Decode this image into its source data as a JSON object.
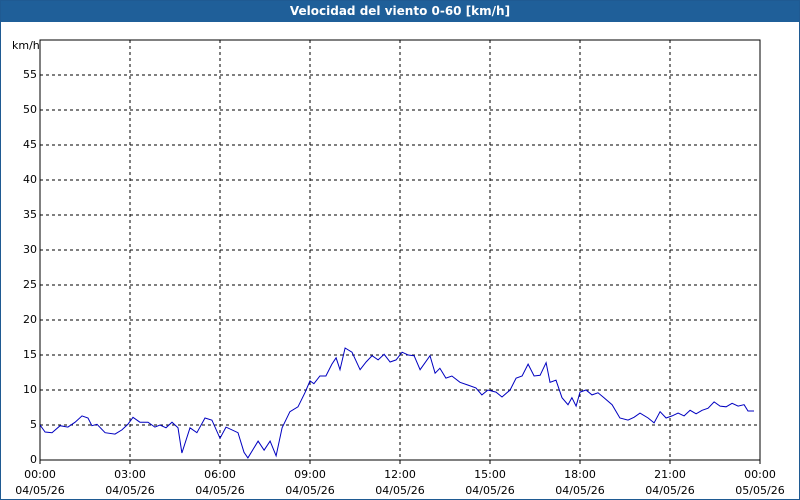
{
  "chart_data": {
    "type": "line",
    "title": "Velocidad del viento 0-60 [km/h]",
    "y_label": "km/h",
    "xlim": [
      0,
      24
    ],
    "xticks": [
      {
        "value": 0,
        "label": "00:00"
      },
      {
        "value": 3,
        "label": "03:00"
      },
      {
        "value": 6,
        "label": "06:00"
      },
      {
        "value": 9,
        "label": "09:00"
      },
      {
        "value": 12,
        "label": "12:00"
      },
      {
        "value": 15,
        "label": "15:00"
      },
      {
        "value": 18,
        "label": "18:00"
      },
      {
        "value": 21,
        "label": "21:00"
      },
      {
        "value": 24,
        "label": "00:00"
      }
    ],
    "xtick_dates": [
      "04/05/26",
      "04/05/26",
      "04/05/26",
      "04/05/26",
      "04/05/26",
      "04/05/26",
      "04/05/26",
      "04/05/26",
      "05/05/26"
    ],
    "ylim": [
      0,
      60
    ],
    "yticks": [
      0,
      5,
      10,
      15,
      20,
      25,
      30,
      35,
      40,
      45,
      50,
      55
    ],
    "grid": true,
    "series": [
      {
        "name": "Velocidad del viento",
        "color": "#0000c0",
        "x": [
          0,
          0.17,
          0.4,
          0.67,
          0.93,
          1.17,
          1.4,
          1.6,
          1.73,
          1.9,
          2.17,
          2.5,
          2.73,
          2.93,
          3.1,
          3.33,
          3.6,
          3.83,
          4,
          4.2,
          4.4,
          4.6,
          4.73,
          5,
          5.23,
          5.5,
          5.73,
          6,
          6.2,
          6.6,
          6.8,
          6.93,
          7.27,
          7.47,
          7.67,
          7.87,
          8.07,
          8.33,
          8.6,
          8.83,
          9,
          9.13,
          9.33,
          9.53,
          9.73,
          9.87,
          10,
          10.17,
          10.4,
          10.67,
          10.87,
          11.07,
          11.27,
          11.47,
          11.67,
          11.87,
          12.07,
          12.27,
          12.47,
          12.67,
          13,
          13.17,
          13.33,
          13.53,
          13.73,
          14,
          14.27,
          14.53,
          14.73,
          14.93,
          15.2,
          15.4,
          15.67,
          15.87,
          16.07,
          16.27,
          16.47,
          16.67,
          16.87,
          17,
          17.2,
          17.4,
          17.6,
          17.73,
          17.87,
          18,
          18.2,
          18.4,
          18.6,
          18.8,
          19.07,
          19.33,
          19.6,
          19.8,
          20,
          20.27,
          20.47,
          20.67,
          20.87,
          21.07,
          21.27,
          21.47,
          21.67,
          21.87,
          22.07,
          22.27,
          22.47,
          22.67,
          22.87,
          23.07,
          23.27,
          23.47,
          23.6,
          23.8
        ],
        "values": [
          5,
          4,
          3.9,
          4.9,
          4.7,
          5.4,
          6.3,
          6,
          4.9,
          5.1,
          3.9,
          3.7,
          4.3,
          5.1,
          6.1,
          5.4,
          5.4,
          4.7,
          5,
          4.6,
          5.4,
          4.6,
          1,
          4.6,
          3.9,
          6,
          5.7,
          3.1,
          4.7,
          3.9,
          1.1,
          0.3,
          2.7,
          1.4,
          2.7,
          0.6,
          4.6,
          6.9,
          7.6,
          9.6,
          11.3,
          10.9,
          12,
          12,
          13.7,
          14.6,
          12.9,
          16,
          15.4,
          12.9,
          14,
          14.9,
          14.3,
          15.1,
          14,
          14.3,
          15.4,
          15,
          14.9,
          12.9,
          14.9,
          12.4,
          13.1,
          11.7,
          12,
          11.1,
          10.7,
          10.3,
          9.3,
          10,
          9.7,
          9,
          10,
          11.7,
          12,
          13.7,
          12,
          12.1,
          13.9,
          11.1,
          11.4,
          8.9,
          7.9,
          8.9,
          7.7,
          9.7,
          10,
          9.3,
          9.6,
          8.9,
          7.9,
          6,
          5.7,
          6.1,
          6.7,
          6,
          5.3,
          6.9,
          6,
          6.3,
          6.7,
          6.3,
          7.1,
          6.6,
          7.1,
          7.4,
          8.3,
          7.7,
          7.6,
          8.1,
          7.7,
          7.9,
          7,
          7
        ]
      }
    ]
  }
}
